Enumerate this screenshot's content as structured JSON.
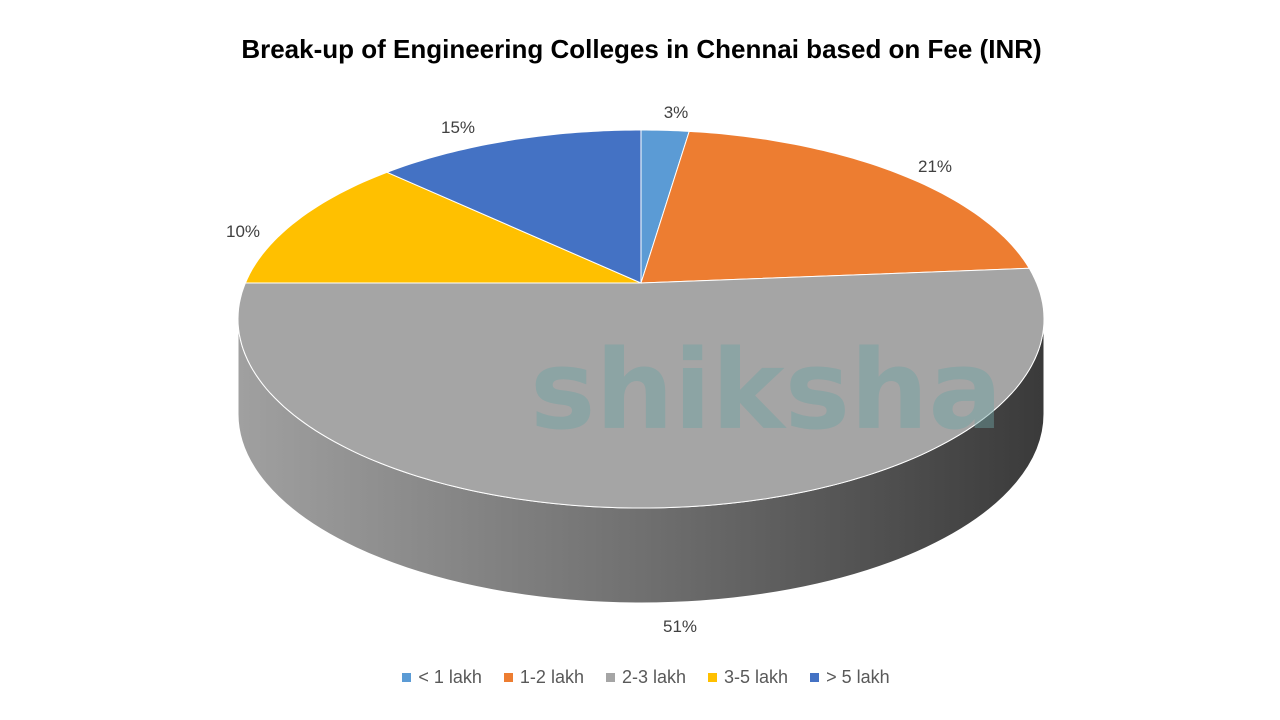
{
  "chart_data": {
    "type": "pie",
    "style": "3d",
    "title": "Break-up of Engineering Colleges in Chennai based on Fee (INR)",
    "categories": [
      "< 1 lakh",
      "1-2 lakh",
      "2-3 lakh",
      "3-5 lakh",
      "> 5 lakh"
    ],
    "values": [
      3,
      21,
      51,
      10,
      15
    ],
    "data_labels": [
      "3%",
      "21%",
      "51%",
      "10%",
      "15%"
    ],
    "colors": [
      "#5B9BD5",
      "#ED7D31",
      "#A5A5A5",
      "#FFC000",
      "#4472C4"
    ],
    "legend_position": "bottom"
  },
  "watermark": "shiksha"
}
